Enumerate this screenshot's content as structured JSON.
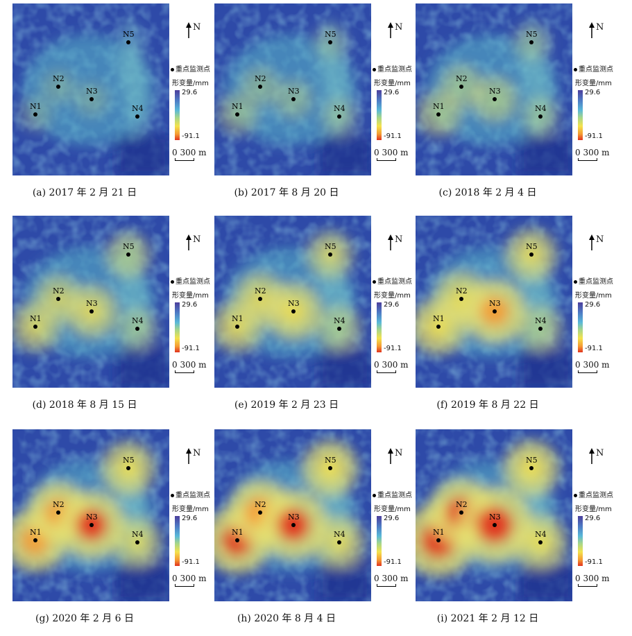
{
  "labels": {
    "north": "N",
    "point_legend": "重点监测点",
    "deform_title": "形变量/mm",
    "max": "29.6",
    "min": "-91.1",
    "scale": "0 300 m"
  },
  "colors": {
    "uplift": "#4c3f9c",
    "stable": "#59b8d8",
    "mild": "#f4e24c",
    "subsidence": "#e0331f",
    "background": "#2a3f98"
  },
  "points": [
    "N1",
    "N2",
    "N3",
    "N4",
    "N5"
  ],
  "panels": [
    {
      "caption": "(a) 2017 年 2 月 21 日",
      "intensity": [
        0.05,
        0.05,
        0.05,
        0.0,
        0.0
      ]
    },
    {
      "caption": "(b) 2017 年 8 月 20 日",
      "intensity": [
        0.2,
        0.15,
        0.15,
        0.1,
        0.05
      ]
    },
    {
      "caption": "(c) 2018 年 2 月 4 日",
      "intensity": [
        0.3,
        0.25,
        0.3,
        0.15,
        0.1
      ]
    },
    {
      "caption": "(d) 2018 年 8 月 15 日",
      "intensity": [
        0.4,
        0.35,
        0.45,
        0.2,
        0.3
      ]
    },
    {
      "caption": "(e) 2019 年 2 月 23 日",
      "intensity": [
        0.45,
        0.45,
        0.55,
        0.3,
        0.35
      ]
    },
    {
      "caption": "(f) 2019 年 8 月 22 日",
      "intensity": [
        0.55,
        0.5,
        0.7,
        0.3,
        0.45
      ]
    },
    {
      "caption": "(g) 2020 年 2 月 6 日",
      "intensity": [
        0.7,
        0.65,
        0.8,
        0.4,
        0.5
      ]
    },
    {
      "caption": "(h) 2020 年 8 月 4 日",
      "intensity": [
        0.8,
        0.75,
        0.85,
        0.45,
        0.55
      ]
    },
    {
      "caption": "(i) 2021 年 2 月 12 日",
      "intensity": [
        0.95,
        0.8,
        1.0,
        0.5,
        0.55
      ]
    }
  ]
}
